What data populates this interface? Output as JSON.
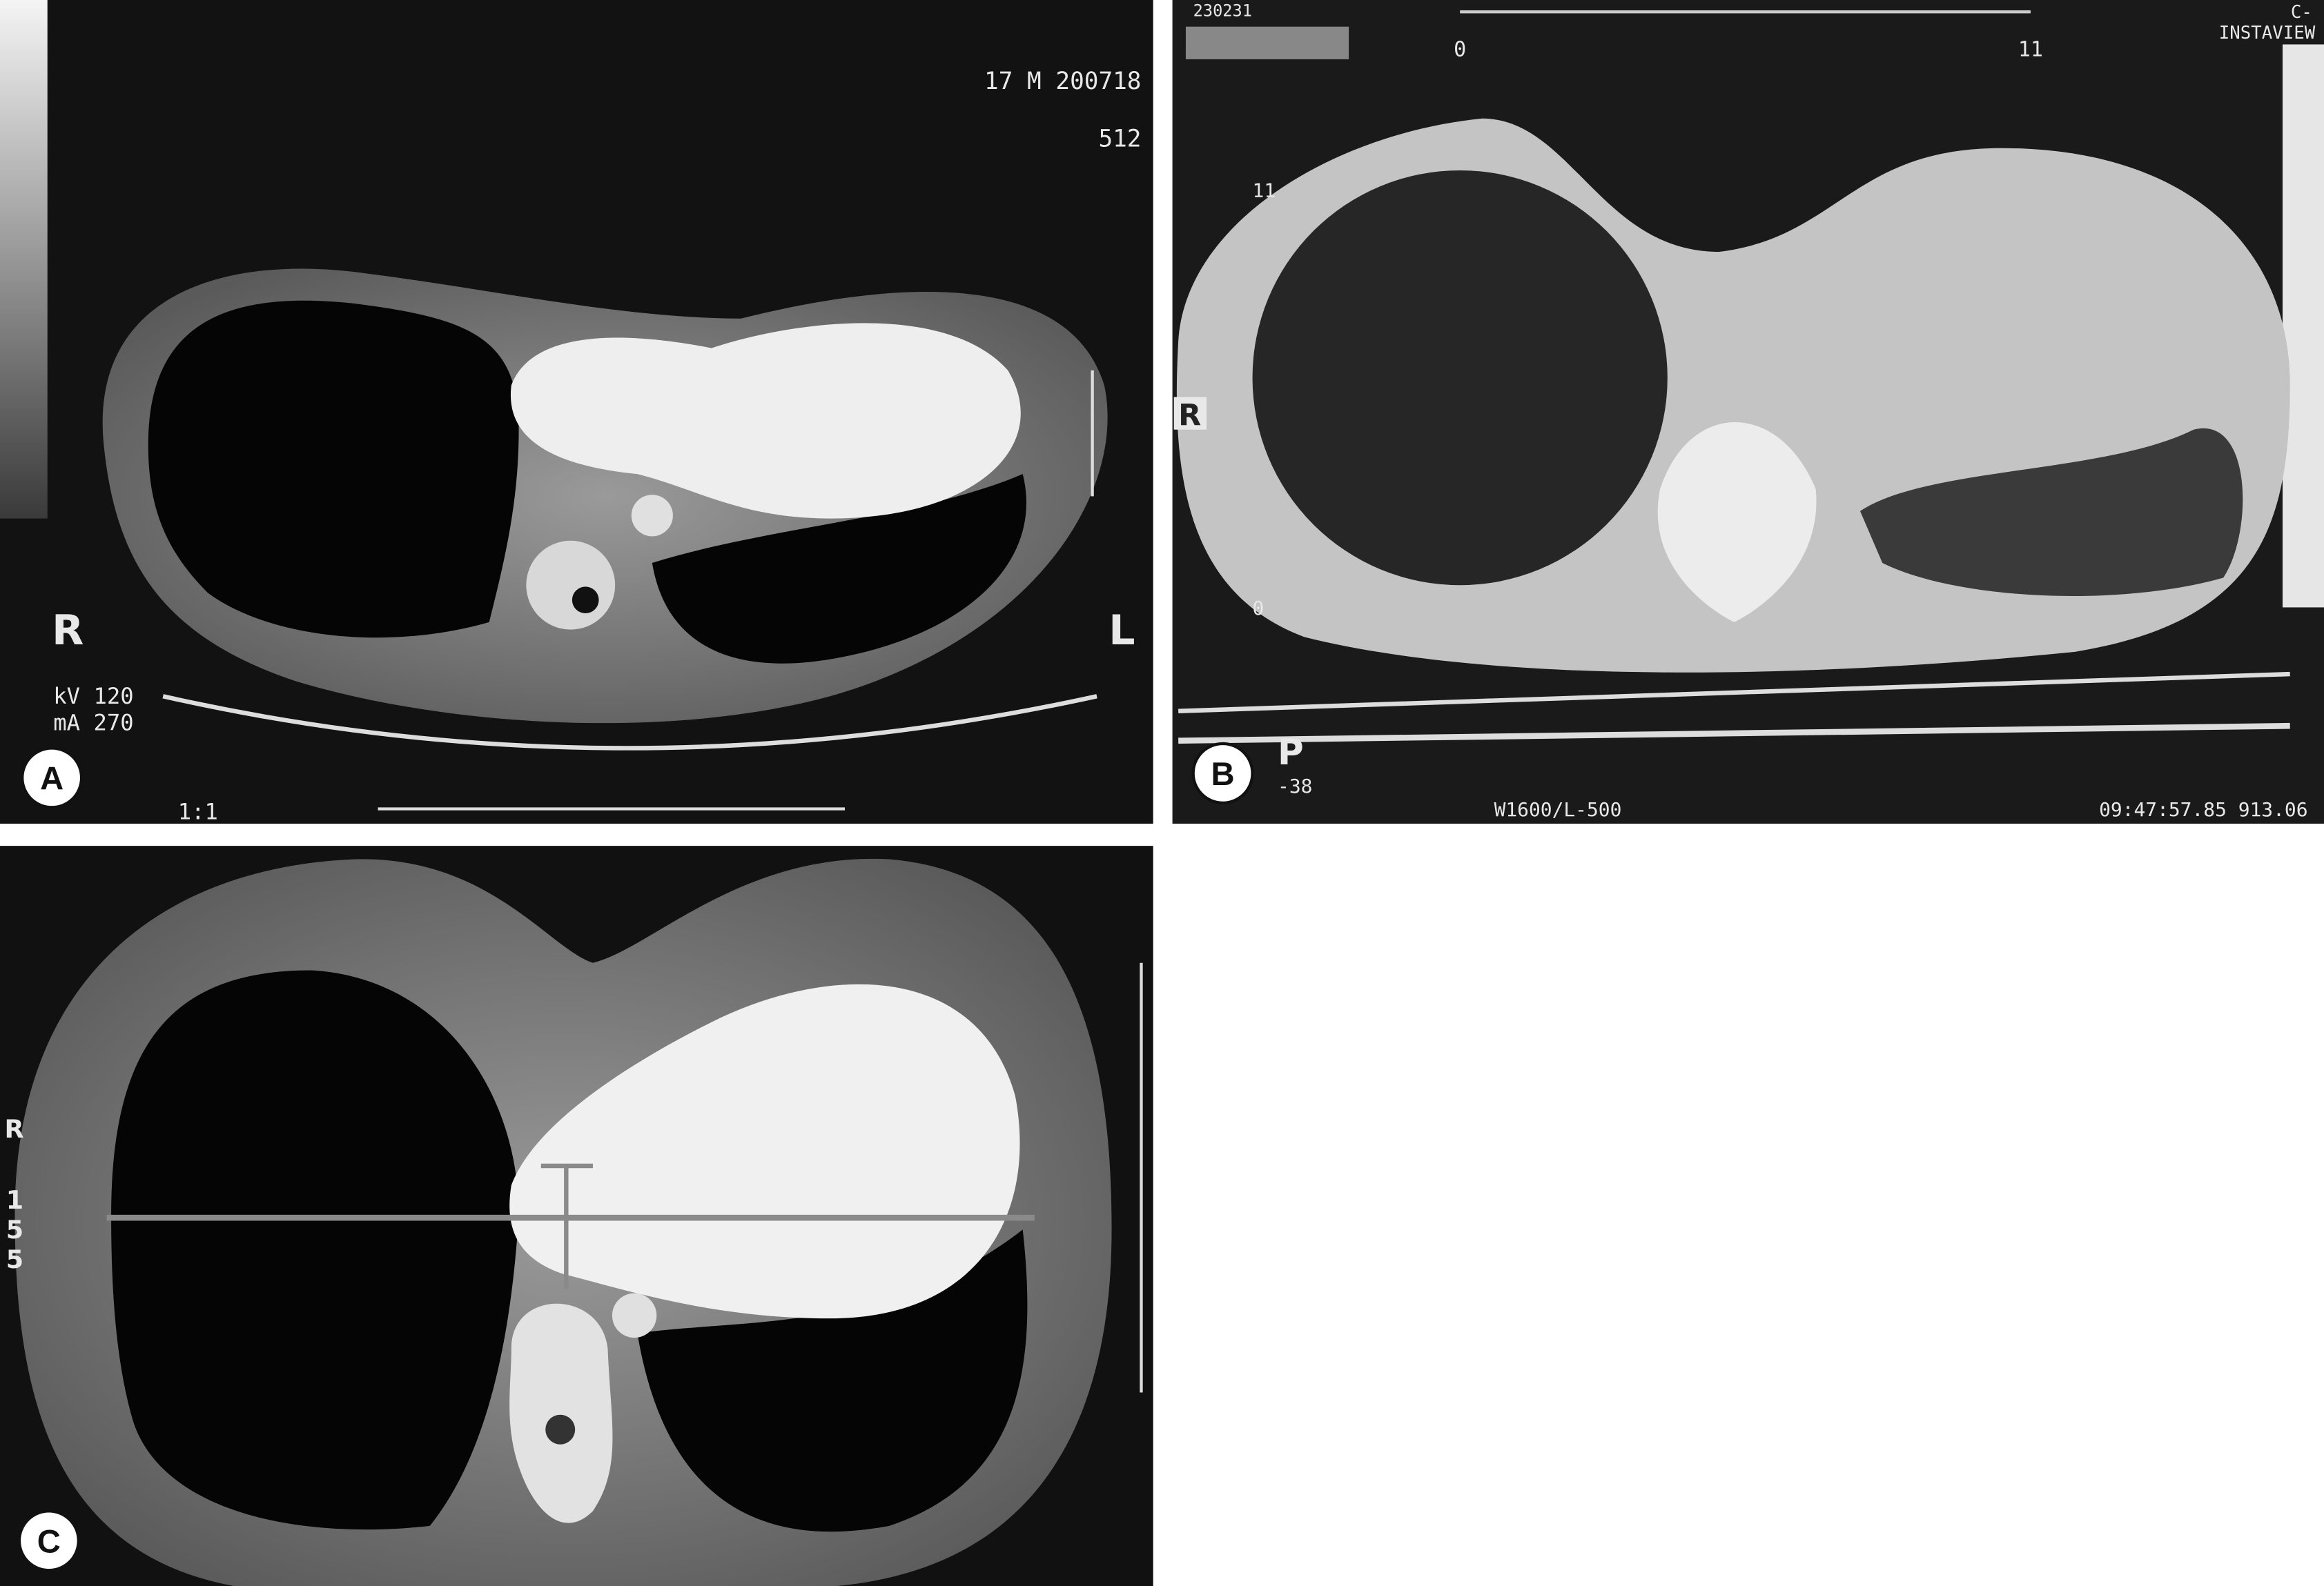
{
  "panels": [
    {
      "label": "A",
      "annotations": [
        "17 M 200718",
        "512",
        "R",
        "L",
        "kV 120",
        "mA 270",
        "1:1"
      ]
    },
    {
      "label": "B",
      "annotations": [
        "230231",
        "0",
        "11",
        "C-",
        "INSTAVIEW",
        "11",
        "R",
        "0",
        "P",
        "-38",
        "W1600/L-500",
        "09:47:57.85 913.06"
      ]
    },
    {
      "label": "C",
      "annotations": [
        "R",
        "155"
      ]
    }
  ]
}
